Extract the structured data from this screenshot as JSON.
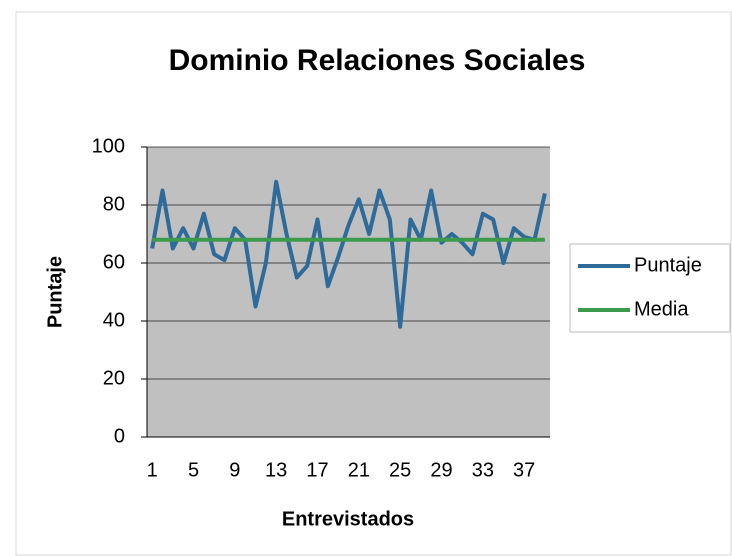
{
  "chart_data": {
    "type": "line",
    "title": "Dominio Relaciones Sociales",
    "x_label": "Entrevistados",
    "y_label": "Puntaje",
    "categories": [
      1,
      null,
      null,
      null,
      5,
      null,
      null,
      null,
      9,
      null,
      null,
      null,
      13,
      null,
      null,
      null,
      17,
      null,
      null,
      null,
      21,
      null,
      null,
      null,
      25,
      null,
      null,
      null,
      29,
      null,
      null,
      null,
      33,
      null,
      null,
      null,
      37,
      null,
      null
    ],
    "series": [
      {
        "name": "Puntaje",
        "color": "#2f6b9a",
        "values": [
          65,
          85,
          65,
          72,
          65,
          77,
          63,
          61,
          72,
          68,
          45,
          60,
          88,
          70,
          55,
          59,
          75,
          52,
          62,
          73,
          82,
          70,
          85,
          75,
          38,
          75,
          68,
          85,
          67,
          70,
          67,
          63,
          77,
          75,
          60,
          72,
          69,
          68,
          84
        ]
      },
      {
        "name": "Media",
        "color": "#3c9a4c",
        "values": [
          68,
          68,
          68,
          68,
          68,
          68,
          68,
          68,
          68,
          68,
          68,
          68,
          68,
          68,
          68,
          68,
          68,
          68,
          68,
          68,
          68,
          68,
          68,
          68,
          68,
          68,
          68,
          68,
          68,
          68,
          68,
          68,
          68,
          68,
          68,
          68,
          68,
          68,
          68
        ]
      }
    ],
    "ylim": [
      0,
      100
    ],
    "yticks": [
      0,
      20,
      40,
      60,
      80,
      100
    ],
    "grid": true,
    "legend": "right"
  }
}
